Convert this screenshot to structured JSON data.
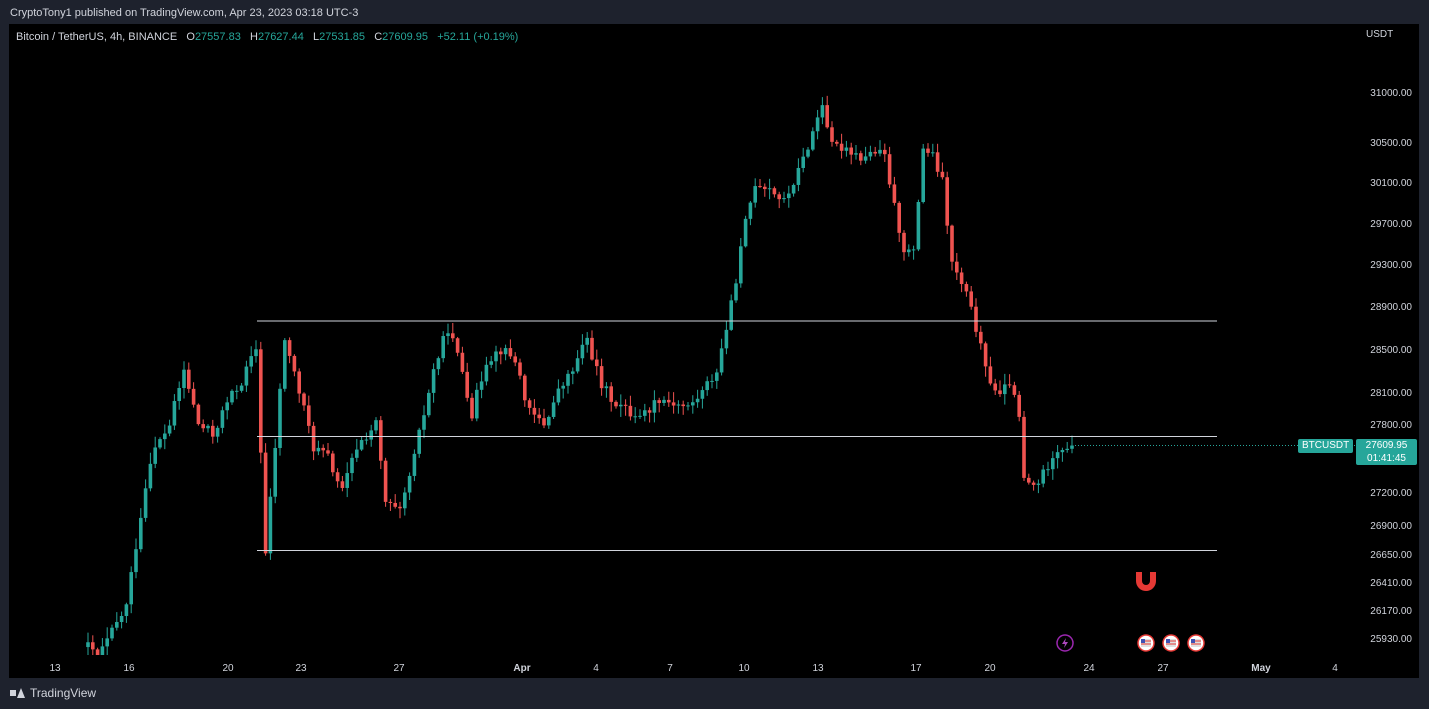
{
  "header": {
    "publish_line": "CryptoTony1 published on TradingView.com, Apr 23, 2023 03:18 UTC-3"
  },
  "legend": {
    "symbol": "Bitcoin / TetherUS, 4h, BINANCE",
    "open_label": "O",
    "open": "27557.83",
    "high_label": "H",
    "high": "27627.44",
    "low_label": "L",
    "low": "27531.85",
    "close_label": "C",
    "close": "27609.95",
    "change": "+52.11 (+0.19%)"
  },
  "price_axis": {
    "currency": "USDT"
  },
  "last_price": {
    "symbol_label": "BTCUSDT",
    "price": "27609.95",
    "countdown": "01:41:45"
  },
  "footer": {
    "brand": "TradingView"
  },
  "colors": {
    "up": "#26a69a",
    "down": "#ef5350",
    "background": "#000000",
    "frame": "#1e222d",
    "text": "#d1d4dc",
    "level_line": "#d1d4dc"
  },
  "icons": {
    "magnet": "magnet-icon",
    "lightning": "lightning-icon",
    "us_flag": "us-flag-icon"
  },
  "chart_data": {
    "type": "candlestick",
    "timeframe": "4h",
    "x_ticks": [
      "13",
      "16",
      "20",
      "23",
      "27",
      "Apr",
      "4",
      "7",
      "10",
      "13",
      "17",
      "20",
      "24",
      "27",
      "May",
      "4"
    ],
    "y_ticks": [
      "31000.00",
      "30500.00",
      "30100.00",
      "29700.00",
      "29300.00",
      "28900.00",
      "28500.00",
      "28100.00",
      "27800.00",
      "27200.00",
      "26900.00",
      "26650.00",
      "26410.00",
      "26170.00",
      "25930.00"
    ],
    "ylim": [
      25780,
      31400
    ],
    "horizontal_levels": [
      28760,
      27690,
      26680
    ],
    "price_path": [
      [
        0,
        25850
      ],
      [
        2,
        25750
      ],
      [
        8,
        26200
      ],
      [
        11,
        27000
      ],
      [
        13,
        27500
      ],
      [
        17,
        27800
      ],
      [
        20,
        28300
      ],
      [
        23,
        27800
      ],
      [
        26,
        27700
      ],
      [
        29,
        28000
      ],
      [
        32,
        28200
      ],
      [
        35,
        28500
      ],
      [
        37,
        26650
      ],
      [
        39,
        27600
      ],
      [
        41,
        28600
      ],
      [
        44,
        28100
      ],
      [
        47,
        27600
      ],
      [
        50,
        27500
      ],
      [
        53,
        27200
      ],
      [
        56,
        27600
      ],
      [
        60,
        27800
      ],
      [
        62,
        27100
      ],
      [
        65,
        27000
      ],
      [
        68,
        27500
      ],
      [
        72,
        28300
      ],
      [
        75,
        28700
      ],
      [
        78,
        28300
      ],
      [
        80,
        27900
      ],
      [
        83,
        28400
      ],
      [
        86,
        28500
      ],
      [
        89,
        28400
      ],
      [
        92,
        27900
      ],
      [
        95,
        27800
      ],
      [
        98,
        28100
      ],
      [
        101,
        28300
      ],
      [
        104,
        28600
      ],
      [
        107,
        28150
      ],
      [
        110,
        28000
      ],
      [
        113,
        27900
      ],
      [
        116,
        27900
      ],
      [
        119,
        28050
      ],
      [
        122,
        28000
      ],
      [
        125,
        27950
      ],
      [
        128,
        28100
      ],
      [
        131,
        28300
      ],
      [
        134,
        28900
      ],
      [
        137,
        29700
      ],
      [
        139,
        30100
      ],
      [
        142,
        30050
      ],
      [
        145,
        29900
      ],
      [
        148,
        30200
      ],
      [
        151,
        30600
      ],
      [
        153,
        30900
      ],
      [
        155,
        30450
      ],
      [
        158,
        30450
      ],
      [
        161,
        30350
      ],
      [
        164,
        30400
      ],
      [
        166,
        30350
      ],
      [
        168,
        29850
      ],
      [
        170,
        29450
      ],
      [
        172,
        29400
      ],
      [
        174,
        30450
      ],
      [
        176,
        30350
      ],
      [
        178,
        30100
      ],
      [
        180,
        29300
      ],
      [
        183,
        29000
      ],
      [
        185,
        28700
      ],
      [
        187,
        28300
      ],
      [
        190,
        28050
      ],
      [
        192,
        28200
      ],
      [
        194,
        27850
      ],
      [
        195,
        27300
      ],
      [
        197,
        27250
      ],
      [
        199,
        27350
      ],
      [
        201,
        27550
      ],
      [
        203,
        27600
      ],
      [
        205,
        27610
      ]
    ],
    "last_close": 27609.95
  }
}
